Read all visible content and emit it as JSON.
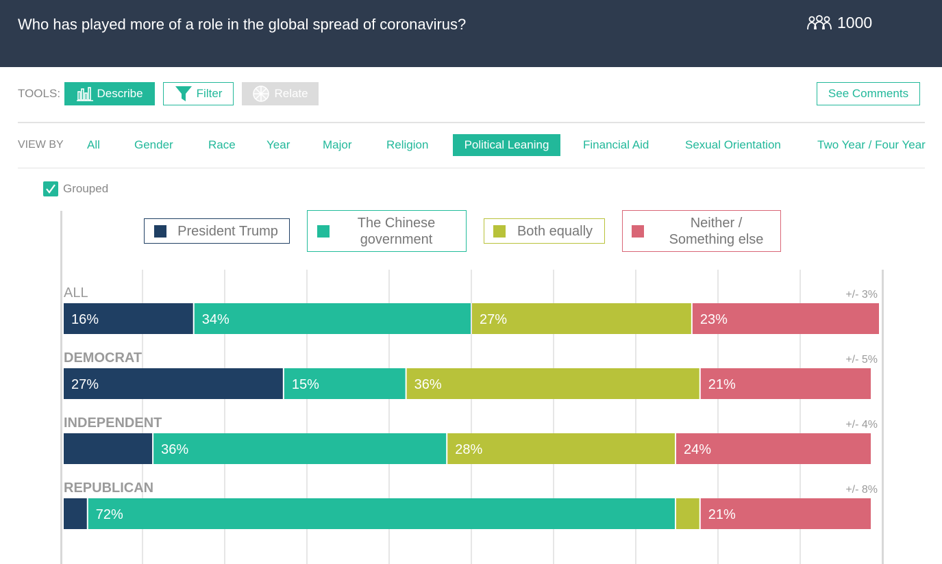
{
  "header": {
    "question": "Who has played more of a role in the global spread of coronavirus?",
    "respondents_icon": "people-group-icon",
    "respondents_count": "1000"
  },
  "tools": {
    "label": "TOOLS:",
    "describe_label": "Describe",
    "describe_icon": "bar-chart-icon",
    "filter_label": "Filter",
    "filter_icon": "funnel-icon",
    "relate_label": "Relate",
    "relate_icon": "network-icon",
    "see_comments_label": "See Comments"
  },
  "view_by": {
    "label": "VIEW BY",
    "items": [
      {
        "label": "All",
        "active": false
      },
      {
        "label": "Gender",
        "active": false
      },
      {
        "label": "Race",
        "active": false
      },
      {
        "label": "Year",
        "active": false
      },
      {
        "label": "Major",
        "active": false
      },
      {
        "label": "Religion",
        "active": false
      },
      {
        "label": "Political Leaning",
        "active": true
      },
      {
        "label": "Financial Aid",
        "active": false
      },
      {
        "label": "Sexual Orientation",
        "active": false
      },
      {
        "label": "Two Year / Four Year",
        "active": false
      }
    ]
  },
  "grouped": {
    "label": "Grouped",
    "checked": true
  },
  "colors": {
    "header_bg": "#2e3b4e",
    "accent": "#22b89a",
    "trump": "#1f3f63",
    "chinese_government": "#22bc9b",
    "both_equally": "#b8c23a",
    "neither": "#d96676"
  },
  "chart_data": {
    "type": "bar",
    "stacked": true,
    "orientation": "horizontal",
    "xlim": [
      0,
      100
    ],
    "legend": [
      {
        "label": "President Trump",
        "color": "#1f3f63"
      },
      {
        "label": "The Chinese government",
        "color": "#22bc9b"
      },
      {
        "label": "Both equally",
        "color": "#b8c23a"
      },
      {
        "label": "Neither / Something else",
        "color": "#d96676"
      }
    ],
    "categories": [
      "ALL",
      "DEMOCRAT",
      "INDEPENDENT",
      "REPUBLICAN"
    ],
    "margin_of_error": [
      "+/- 3%",
      "+/- 5%",
      "+/- 4%",
      "+/- 8%"
    ],
    "series": [
      {
        "name": "President Trump",
        "values": [
          16,
          27,
          11,
          3
        ],
        "labels": [
          "16%",
          "27%",
          "",
          ""
        ]
      },
      {
        "name": "The Chinese government",
        "values": [
          34,
          15,
          36,
          72
        ],
        "labels": [
          "34%",
          "15%",
          "36%",
          "72%"
        ]
      },
      {
        "name": "Both equally",
        "values": [
          27,
          36,
          28,
          3
        ],
        "labels": [
          "27%",
          "36%",
          "28%",
          ""
        ]
      },
      {
        "name": "Neither / Something else",
        "values": [
          23,
          21,
          24,
          21
        ],
        "labels": [
          "23%",
          "21%",
          "24%",
          "21%"
        ]
      }
    ],
    "grid": true
  }
}
